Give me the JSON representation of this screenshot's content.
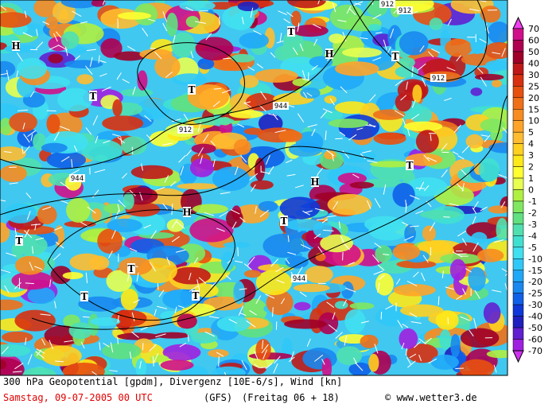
{
  "map": {
    "markers": [
      "H",
      "T",
      "H",
      "T",
      "T",
      "T",
      "H",
      "T",
      "H",
      "T",
      "T",
      "T",
      "T",
      "T"
    ],
    "contour_labels": [
      "912",
      "912",
      "912",
      "944",
      "912",
      "944",
      "944"
    ],
    "colorbar": {
      "labels": [
        70,
        60,
        50,
        40,
        30,
        25,
        20,
        15,
        10,
        5,
        4,
        3,
        2,
        1,
        0,
        -1,
        -2,
        -3,
        -4,
        -5,
        -10,
        -15,
        -20,
        -25,
        -30,
        -40,
        -50,
        -60,
        -70
      ],
      "colors": [
        "#f040f0",
        "#d0108a",
        "#b00050",
        "#a00028",
        "#c01818",
        "#d83010",
        "#e85010",
        "#f07018",
        "#f88c20",
        "#ffa428",
        "#ffbc30",
        "#ffd020",
        "#ffe818",
        "#ffff30",
        "#e8ff50",
        "#b0f040",
        "#80e860",
        "#60e080",
        "#50e0b0",
        "#40e0d0",
        "#40e0f0",
        "#30c8f8",
        "#20a8f8",
        "#1888f0",
        "#1060e8",
        "#1038d8",
        "#2020c0",
        "#6020d0",
        "#a020e0",
        "#d030f0"
      ]
    },
    "footer": {
      "title": "300 hPa Geopotential [gpdm], Divergenz [10E-6/s], Wind [kn]",
      "date": "Samstag, 09-07-2005  00 UTC",
      "model": "(GFS)",
      "run": "(Freitag 06 + 18)",
      "credit": "© www.wetter3.de"
    }
  }
}
